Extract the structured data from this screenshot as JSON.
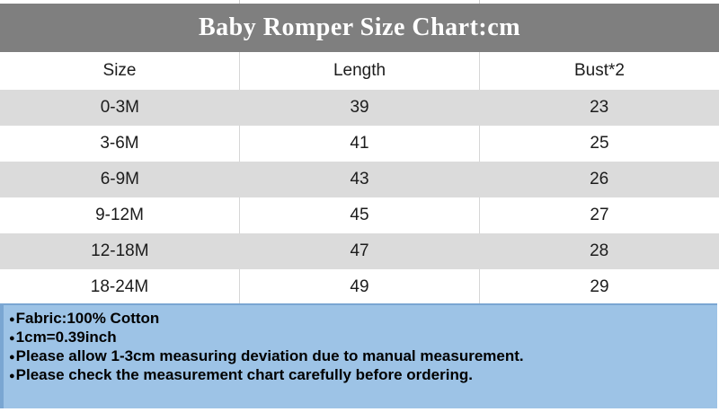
{
  "title": "Baby Romper Size Chart:cm",
  "table": {
    "headers": [
      "Size",
      "Length",
      "Bust*2"
    ],
    "rows": [
      [
        "0-3M",
        "39",
        "23"
      ],
      [
        "3-6M",
        "41",
        "25"
      ],
      [
        "6-9M",
        "43",
        "26"
      ],
      [
        "9-12M",
        "45",
        "27"
      ],
      [
        "12-18M",
        "47",
        "28"
      ],
      [
        "18-24M",
        "49",
        "29"
      ]
    ]
  },
  "notes": {
    "bullet": "●",
    "items": [
      "Fabric:100% Cotton",
      "1cm=0.39inch",
      "Please allow 1-3cm measuring deviation due to manual measurement.",
      "Please check the measurement chart carefully before ordering."
    ]
  },
  "colors": {
    "title_bg": "#7f7f7f",
    "title_fg": "#ffffff",
    "row_alt_bg": "#dbdbdb",
    "row_bg": "#ffffff",
    "divider": "#d6d6d6",
    "notes_bg": "#9dc3e6",
    "notes_border": "#7aa6d2",
    "text": "#1c1c1c"
  }
}
